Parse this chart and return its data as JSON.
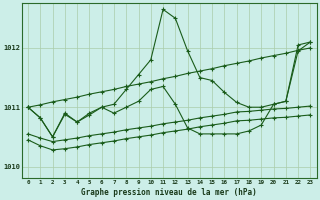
{
  "xlabel": "Graphe pression niveau de la mer (hPa)",
  "xlim": [
    -0.5,
    23.5
  ],
  "ylim": [
    1009.8,
    1012.75
  ],
  "yticks": [
    1010,
    1011,
    1012
  ],
  "xticks": [
    0,
    1,
    2,
    3,
    4,
    5,
    6,
    7,
    8,
    9,
    10,
    11,
    12,
    13,
    14,
    15,
    16,
    17,
    18,
    19,
    20,
    21,
    22,
    23
  ],
  "bg_color": "#cceee8",
  "line_color": "#1a5c1a",
  "grid_color": "#aaccaa",
  "line1": [
    1011.0,
    1010.82,
    1010.5,
    1010.9,
    1010.75,
    1010.9,
    1011.0,
    1011.05,
    1011.3,
    1011.55,
    1011.8,
    1012.65,
    1012.5,
    1011.95,
    1011.5,
    1011.45,
    1011.25,
    1011.08,
    1011.0,
    1011.0,
    1011.05,
    1011.1,
    1012.05,
    1012.1
  ],
  "line2": [
    1011.0,
    1010.82,
    1010.5,
    1010.88,
    1010.75,
    1010.87,
    1011.0,
    1010.9,
    1011.0,
    1011.1,
    1011.3,
    1011.35,
    1011.05,
    1010.65,
    1010.55,
    1010.55,
    1010.55,
    1010.55,
    1010.6,
    1010.7,
    1011.05,
    1011.1,
    1011.95,
    1012.1
  ],
  "line_diag": [
    1011.0,
    1011.04,
    1011.09,
    1011.13,
    1011.17,
    1011.22,
    1011.26,
    1011.3,
    1011.35,
    1011.39,
    1011.43,
    1011.48,
    1011.52,
    1011.57,
    1011.61,
    1011.65,
    1011.7,
    1011.74,
    1011.78,
    1011.83,
    1011.87,
    1011.91,
    1011.96,
    1012.0
  ],
  "line3": [
    1010.55,
    1010.48,
    1010.42,
    1010.45,
    1010.48,
    1010.52,
    1010.55,
    1010.58,
    1010.62,
    1010.65,
    1010.68,
    1010.72,
    1010.75,
    1010.78,
    1010.82,
    1010.85,
    1010.88,
    1010.92,
    1010.93,
    1010.95,
    1010.97,
    1010.98,
    1011.0,
    1011.02
  ],
  "line4": [
    1010.45,
    1010.35,
    1010.28,
    1010.3,
    1010.33,
    1010.37,
    1010.4,
    1010.43,
    1010.47,
    1010.5,
    1010.53,
    1010.57,
    1010.6,
    1010.63,
    1010.67,
    1010.7,
    1010.73,
    1010.77,
    1010.78,
    1010.8,
    1010.82,
    1010.83,
    1010.85,
    1010.87
  ]
}
